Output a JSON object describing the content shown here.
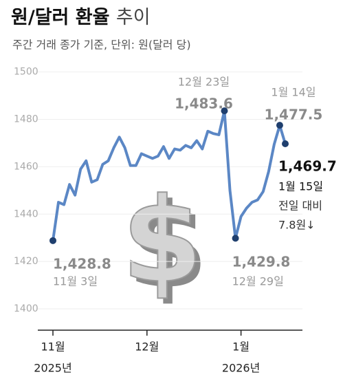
{
  "chart_data": {
    "type": "line",
    "title": "원/달러 환율",
    "title_light": "추이",
    "subtitle": "주간 거래 종가 기준, 단위: 원(달러 당)",
    "categories": [
      "11월",
      null,
      null,
      null,
      null,
      null,
      null,
      null,
      null,
      null,
      null,
      null,
      null,
      null,
      null,
      null,
      null,
      "12월",
      null,
      null,
      null,
      null,
      null,
      null,
      null,
      null,
      null,
      null,
      null,
      null,
      null,
      null,
      null,
      null,
      "1월",
      null,
      null,
      null,
      null,
      null,
      null,
      null,
      null
    ],
    "category_years": [
      "2025년",
      null,
      null,
      null,
      null,
      null,
      null,
      null,
      null,
      null,
      null,
      null,
      null,
      null,
      null,
      null,
      null,
      null,
      null,
      null,
      null,
      null,
      null,
      null,
      null,
      null,
      null,
      null,
      null,
      null,
      null,
      null,
      null,
      null,
      "2026년",
      null,
      null,
      null,
      null,
      null,
      null,
      null,
      null
    ],
    "series": [
      {
        "color": "#5b87c5",
        "marker_color": "#1f3f6e",
        "values": [
          1428.8,
          1445,
          1444,
          1452.5,
          1448,
          1459,
          1462.5,
          1453.5,
          1454.5,
          1461,
          1462.5,
          1468,
          1472.5,
          1468,
          1460.5,
          1460.5,
          1465.5,
          1464.5,
          1463.5,
          1464.5,
          1468.5,
          1463.5,
          1467.5,
          1467,
          1469,
          1468,
          1471,
          1467.5,
          1475,
          1474,
          1473.5,
          1483.6,
          1450,
          1429.8,
          1439,
          1442.5,
          1445,
          1446,
          1449.5,
          1458,
          1469.5,
          1477.5,
          1469.7
        ],
        "value_labels": [
          "1,428.8",
          null,
          null,
          null,
          null,
          null,
          null,
          null,
          null,
          null,
          null,
          null,
          null,
          null,
          null,
          null,
          null,
          null,
          null,
          null,
          null,
          null,
          null,
          null,
          null,
          null,
          null,
          null,
          null,
          null,
          null,
          "1,483.6",
          null,
          "1,429.8",
          null,
          null,
          null,
          null,
          null,
          null,
          null,
          "1,477.5",
          "1,469.7"
        ],
        "point_dates": [
          "11월 3일",
          null,
          null,
          null,
          null,
          null,
          null,
          null,
          null,
          null,
          null,
          null,
          null,
          null,
          null,
          null,
          null,
          null,
          null,
          null,
          null,
          null,
          null,
          null,
          null,
          null,
          null,
          null,
          null,
          null,
          null,
          "12월 23일",
          null,
          "12월 29일",
          null,
          null,
          null,
          null,
          null,
          null,
          null,
          "1월 14일",
          "1월 15일"
        ]
      }
    ],
    "note": [
      "전일 대비",
      "7.8원↓"
    ],
    "ylim": [
      1391,
      1506
    ],
    "yticks": [
      1400,
      1420,
      1440,
      1460,
      1480,
      1500
    ],
    "grid": true
  }
}
